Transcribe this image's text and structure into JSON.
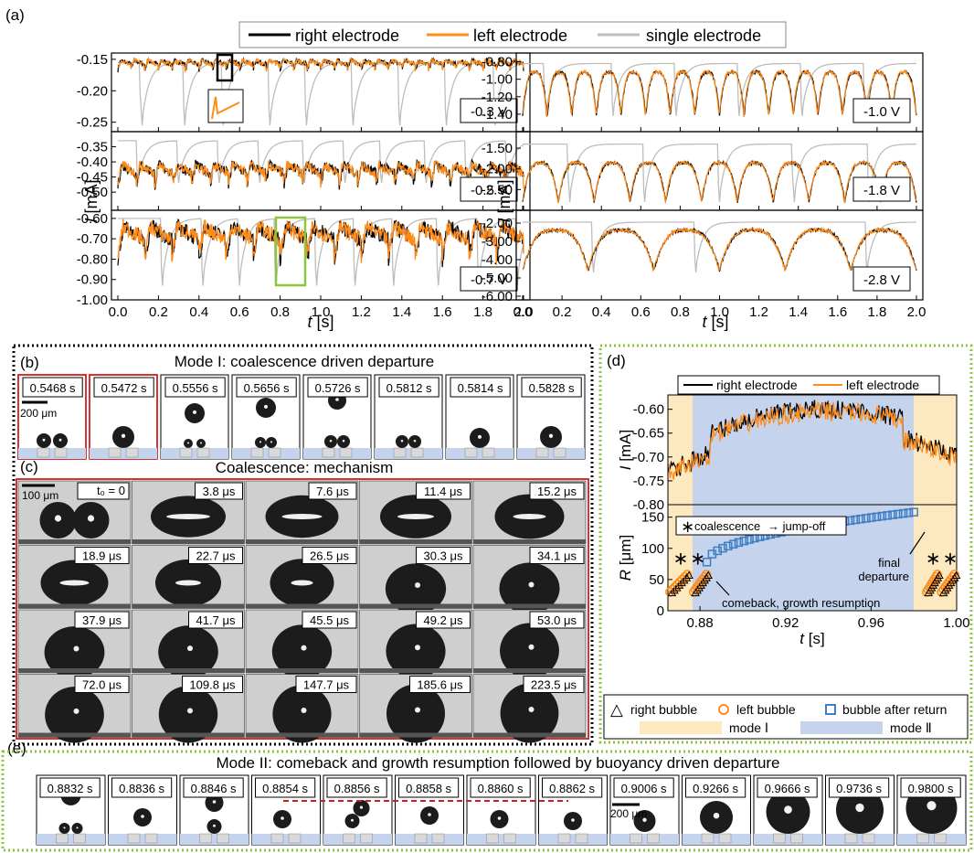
{
  "panel_labels": {
    "a": "(a)",
    "b": "(b)",
    "c": "(c)",
    "d": "(d)",
    "e": "(e)"
  },
  "colors": {
    "right": "#000000",
    "left": "#ff8c1a",
    "single": "#bdbdbd",
    "mode1": "#fde9c0",
    "mode2": "#c5d3ec",
    "sq": "#3f7fc4",
    "red": "#d01e1e",
    "green": "#8cc63f"
  },
  "legend_a": {
    "right": "right electrode",
    "left": "left electrode",
    "single": "single electrode"
  },
  "chart_data": [
    {
      "type": "line",
      "id": "current-traces",
      "xlabel": "t [s]",
      "xlabel_sym": "t",
      "xlabel_unit": " [s]",
      "ylabel": "I [mA]",
      "ylabel_sym": "I",
      "ylabel_unit": " [mA]",
      "xlim": [
        0.0,
        2.0
      ],
      "xticks": [
        "0.0",
        "0.2",
        "0.4",
        "0.6",
        "0.8",
        "1.0",
        "1.2",
        "1.4",
        "1.6",
        "1.8",
        "2.0"
      ],
      "subplots": [
        {
          "voltage": "-0.3 V",
          "ylim": [
            -0.265,
            -0.14
          ],
          "yticks": [
            "-0.15",
            "-0.20",
            "-0.25"
          ],
          "ytick_values": [
            -0.15,
            -0.2,
            -0.25
          ],
          "base": -0.152,
          "depth": 0.015,
          "n_elec": 30,
          "single_base": -0.155,
          "single_dips": [
            0.12,
            0.33,
            0.52,
            0.75,
            0.93,
            1.16,
            1.39,
            1.62,
            1.86
          ],
          "single_dip": -0.255
        },
        {
          "voltage": "-0.5 V",
          "ylim": [
            -0.56,
            -0.3
          ],
          "yticks": [
            "-0.35",
            "-0.40",
            "-0.45",
            "-0.50"
          ],
          "ytick_values": [
            -0.35,
            -0.4,
            -0.45,
            -0.5
          ],
          "base": -0.41,
          "depth": 0.07,
          "n_elec": 22,
          "single_base": -0.33,
          "single_dips": [
            0.1,
            0.3,
            0.5,
            0.7,
            0.92,
            1.12,
            1.3,
            1.52,
            1.72,
            1.92
          ],
          "single_dip": -0.47
        },
        {
          "voltage": "-0.7 V",
          "ylim": [
            -1.0,
            -0.56
          ],
          "yticks": [
            "-0.60",
            "-0.70",
            "-0.80",
            "-0.90",
            "-1.00"
          ],
          "ytick_values": [
            -0.6,
            -0.7,
            -0.8,
            -0.9,
            -1.0
          ],
          "base": -0.64,
          "depth": 0.16,
          "n_elec": 15,
          "single_base": -0.6,
          "single_dips": [
            0.22,
            0.42,
            0.6,
            0.78,
            0.98,
            1.17,
            1.36,
            1.58,
            1.78,
            1.97
          ],
          "single_dip": -0.93
        },
        {
          "voltage": "-1.0 V",
          "ylim": [
            -1.6,
            -0.7
          ],
          "yticks": [
            "-0.80",
            "-1.00",
            "-1.20",
            "-1.40"
          ],
          "ytick_values": [
            -0.8,
            -1.0,
            -1.2,
            -1.4
          ],
          "base": -0.97,
          "depth": 0.5,
          "n_elec": 16,
          "single_base": -0.82,
          "single_dips": [
            0.12,
            0.46,
            0.78,
            1.1,
            1.42,
            1.74
          ],
          "single_dip": -1.42
        },
        {
          "voltage": "-1.8 V",
          "ylim": [
            -3.0,
            -1.1
          ],
          "yticks": [
            "-1.50",
            "-2.00",
            "-2.50"
          ],
          "ytick_values": [
            -1.5,
            -2.0,
            -2.5
          ],
          "base": -1.95,
          "depth": 0.95,
          "n_elec": 11,
          "single_base": -1.4,
          "single_dips": [
            0.24,
            0.62,
            1.0,
            1.38,
            1.76
          ],
          "single_dip": -2.8
        },
        {
          "voltage": "-2.8 V",
          "ylim": [
            -6.2,
            -1.3
          ],
          "yticks": [
            "-2.00",
            "-3.00",
            "-4.00",
            "-5.00",
            "-6.00"
          ],
          "ytick_values": [
            -2.0,
            -3.0,
            -4.0,
            -5.0,
            -6.0
          ],
          "base": -2.6,
          "depth": 2.2,
          "n_elec": 6,
          "single_base": -1.95,
          "single_dips": [
            0.36,
            0.88,
            1.75
          ],
          "single_dip": -4.7
        }
      ]
    },
    {
      "type": "line",
      "id": "panel-d",
      "legend": {
        "right": "right electrode",
        "left": "left electrode"
      },
      "current": {
        "ylabel_sym": "I",
        "ylabel_unit": " [mA]",
        "ylim": [
          -0.8,
          -0.57
        ],
        "yticks": [
          "-0.60",
          "-0.65",
          "-0.70",
          "-0.75",
          "-0.80"
        ],
        "ytick_values": [
          -0.6,
          -0.65,
          -0.7,
          -0.75,
          -0.8
        ]
      },
      "radius": {
        "ylabel_sym": "R",
        "ylabel_unit": " [μm]",
        "ylim": [
          0,
          170
        ],
        "yticks": [
          "0",
          "50",
          "100",
          "150"
        ],
        "ytick_values": [
          0,
          50,
          100,
          150
        ]
      },
      "xlabel_sym": "t",
      "xlabel_unit": " [s]",
      "xlim": [
        0.865,
        1.0
      ],
      "xticks": [
        "0.88",
        "0.92",
        "0.96",
        "1.00"
      ],
      "xtick_values": [
        0.88,
        0.92,
        0.96,
        1.0
      ],
      "mode_regions": [
        {
          "mode": "I",
          "from": 0.865,
          "to": 0.8765
        },
        {
          "mode": "II",
          "from": 0.8765,
          "to": 0.98
        },
        {
          "mode": "I",
          "from": 0.98,
          "to": 1.0
        }
      ],
      "bubble_after_return": {
        "t_start": 0.8832,
        "t_end": 0.98,
        "r_start": 78,
        "r_end": 158
      },
      "annotations": {
        "coalescence": "coalescence",
        "arrow": "→ jump-off",
        "star": "∗",
        "final1": "final",
        "final2": "departure",
        "comeback": "comeback, growth resumption"
      }
    }
  ],
  "legend_d": {
    "right_bubble": "right bubble",
    "left_bubble": "left bubble",
    "after_return": "bubble after return",
    "mode1": "mode Ⅰ",
    "mode2": "mode Ⅱ"
  },
  "panel_b": {
    "title": "Mode I: coalescence driven departure",
    "scale": "200 μm",
    "frames": [
      "0.5468 s",
      "0.5472 s",
      "0.5556 s",
      "0.5656 s",
      "0.5726 s",
      "0.5812 s",
      "0.5814 s",
      "0.5828 s"
    ]
  },
  "panel_c": {
    "title": "Coalescence: mechanism",
    "scale": "100 μm",
    "t0": "t₀ = 0",
    "frames": [
      "3.8 μs",
      "7.6 μs",
      "11.4 μs",
      "15.2 μs",
      "18.9 μs",
      "22.7 μs",
      "26.5 μs",
      "30.3 μs",
      "34.1 μs",
      "37.9 μs",
      "41.7 μs",
      "45.5 μs",
      "49.2 μs",
      "53.0 μs",
      "72.0 μs",
      "109.8 μs",
      "147.7 μs",
      "185.6 μs",
      "223.5 μs"
    ]
  },
  "panel_e": {
    "title": "Mode II: comeback and growth resumption followed by buoyancy driven departure",
    "scale": "200 μm",
    "frames": [
      "0.8832 s",
      "0.8836 s",
      "0.8846 s",
      "0.8854 s",
      "0.8856 s",
      "0.8858 s",
      "0.8860 s",
      "0.8862 s",
      "0.9006 s",
      "0.9266 s",
      "0.9666 s",
      "0.9736 s",
      "0.9800 s"
    ]
  }
}
